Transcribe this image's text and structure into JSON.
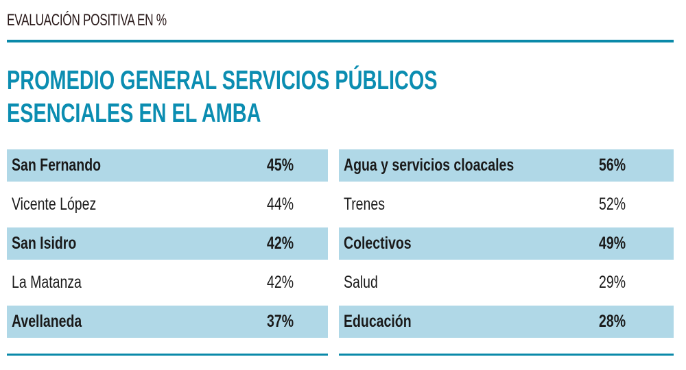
{
  "kicker": "EVALUACIÓN POSITIVA EN %",
  "title": {
    "line1": "PROMEDIO GENERAL SERVICIOS PÚBLICOS",
    "line2": "ESENCIALES EN EL AMBA"
  },
  "colors": {
    "accent": "#0b8db1",
    "row_highlight": "#b0d8e7"
  },
  "chart_data": [
    {
      "type": "table",
      "rows": [
        {
          "label": "San Fernando",
          "value": "45%"
        },
        {
          "label": "Vicente López",
          "value": "44%"
        },
        {
          "label": "San Isidro",
          "value": "42%"
        },
        {
          "label": "La Matanza",
          "value": "42%"
        },
        {
          "label": "Avellaneda",
          "value": "37%"
        }
      ]
    },
    {
      "type": "table",
      "rows": [
        {
          "label": "Agua y servicios cloacales",
          "value": "56%"
        },
        {
          "label": "Trenes",
          "value": "52%"
        },
        {
          "label": "Colectivos",
          "value": "49%"
        },
        {
          "label": "Salud",
          "value": "29%"
        },
        {
          "label": "Educación",
          "value": "28%"
        }
      ]
    }
  ]
}
